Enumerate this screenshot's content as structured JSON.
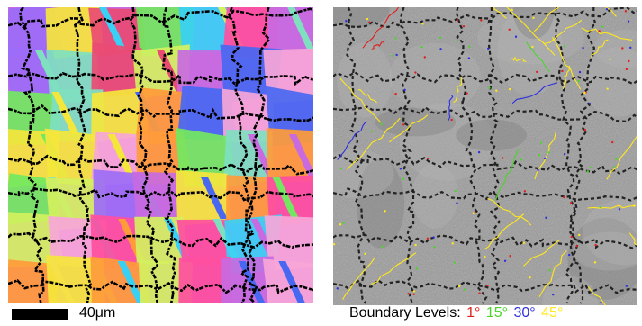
{
  "scale_bar": {
    "label": "40μm"
  },
  "boundary_legend": {
    "prefix": "Boundary Levels:",
    "levels": [
      {
        "label": "1°",
        "color": "#e0201c"
      },
      {
        "label": "15°",
        "color": "#4cd42a"
      },
      {
        "label": "30°",
        "color": "#2f2fe0"
      },
      {
        "label": "45°",
        "color": "#ffe81c"
      }
    ]
  },
  "colors": {
    "ipf_grains": [
      "#c86ae0",
      "#ff4fa0",
      "#39d0f5",
      "#f5e63c",
      "#72e860",
      "#4868f2",
      "#ff9b3a",
      "#9c6cf7",
      "#e94b73",
      "#7fe0c0",
      "#f7a6d8",
      "#d4f060"
    ],
    "iq_background": "#9a9a9a",
    "boundary_black": "#000000"
  }
}
